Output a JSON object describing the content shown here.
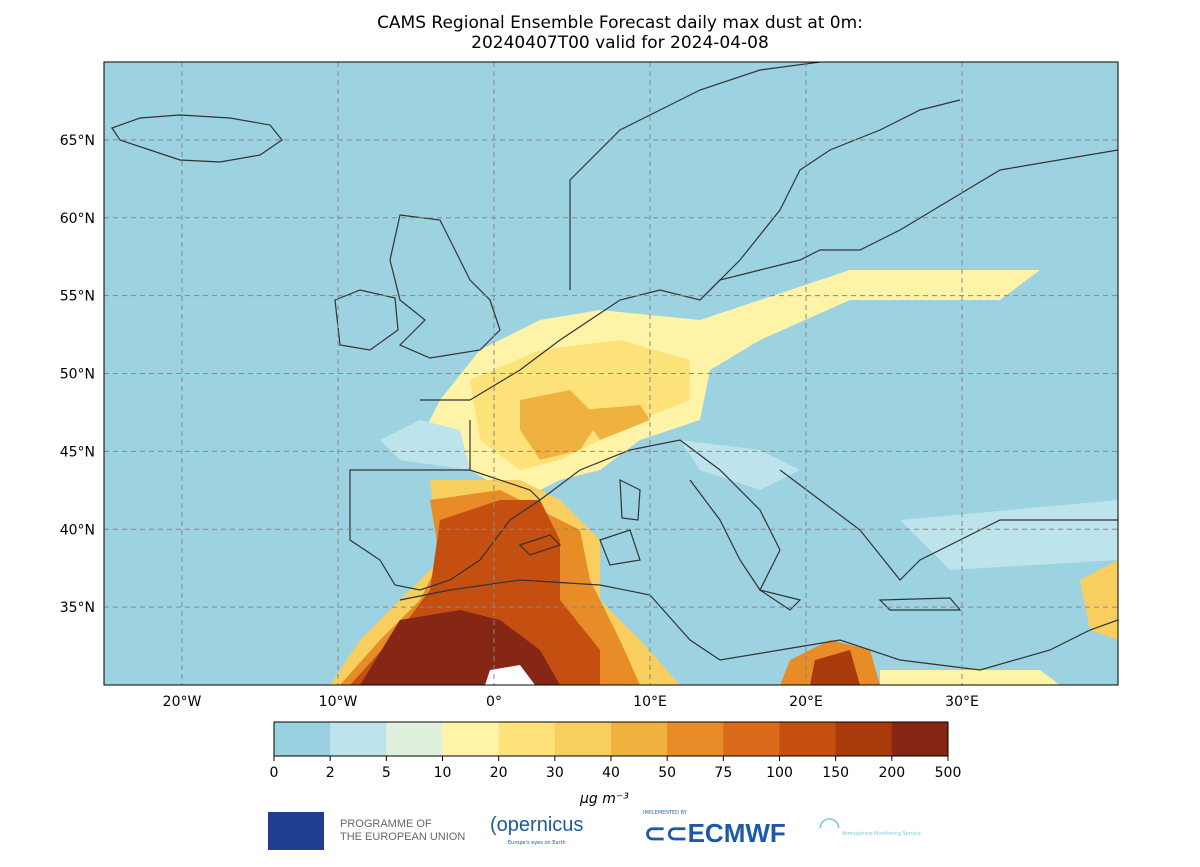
{
  "title_line1": "CAMS Regional Ensemble Forecast daily max dust at 0m:",
  "title_line2": "20240407T00 valid for 2024-04-08",
  "map": {
    "extent": {
      "lon": [
        -25,
        40
      ],
      "lat": [
        30,
        70
      ]
    },
    "lon_ticks": [
      {
        "v": -20,
        "label": "20°W"
      },
      {
        "v": -10,
        "label": "10°W"
      },
      {
        "v": 0,
        "label": "0°"
      },
      {
        "v": 10,
        "label": "10°E"
      },
      {
        "v": 20,
        "label": "20°E"
      },
      {
        "v": 30,
        "label": "30°E"
      }
    ],
    "lat_ticks": [
      {
        "v": 65,
        "label": "65°N"
      },
      {
        "v": 60,
        "label": "60°N"
      },
      {
        "v": 55,
        "label": "55°N"
      },
      {
        "v": 50,
        "label": "50°N"
      },
      {
        "v": 45,
        "label": "45°N"
      },
      {
        "v": 40,
        "label": "40°N"
      },
      {
        "v": 35,
        "label": "35°N"
      }
    ],
    "ocean_color": "#9dd3e1"
  },
  "colorbar": {
    "ticks": [
      "0",
      "2",
      "5",
      "10",
      "20",
      "30",
      "40",
      "50",
      "75",
      "100",
      "150",
      "200",
      "500"
    ],
    "colors": [
      "#9ad1e0",
      "#bde3ec",
      "#dff0dc",
      "#fef3a6",
      "#fde27a",
      "#f8cf5e",
      "#f0b23f",
      "#e78c27",
      "#db6b1b",
      "#c54f10",
      "#a83a0c",
      "#862615"
    ],
    "unit": "µg m⁻³"
  },
  "logos": {
    "eu": "PROGRAMME OF",
    "eu2": "THE EUROPEAN UNION",
    "copernicus": "opernicus",
    "copernicus_sub": "Europe's eyes on Earth",
    "ecmwf_sub": "IMPLEMENTED BY",
    "ecmwf": "ECMWF",
    "cams": "Atmosphere Monitoring Service"
  }
}
